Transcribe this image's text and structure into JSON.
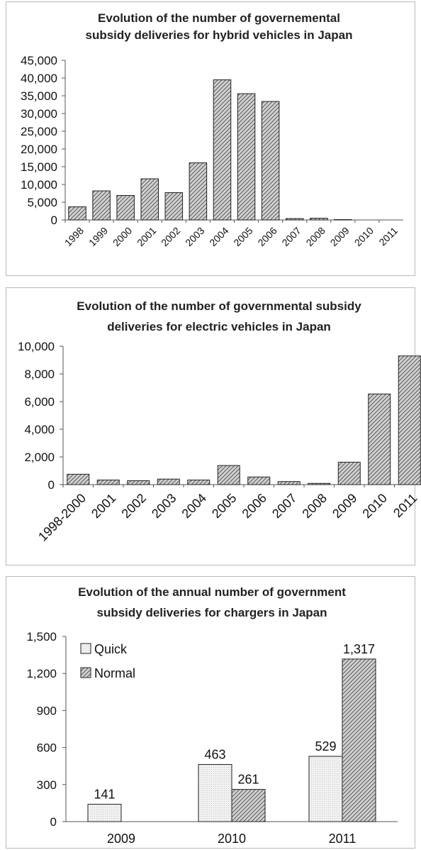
{
  "chart_data": [
    {
      "type": "bar",
      "title_lines": [
        "Evolution of the number of governemental",
        "subsidy deliveries for hybrid vehicles in Japan"
      ],
      "categories": [
        "1998",
        "1999",
        "2000",
        "2001",
        "2002",
        "2003",
        "2004",
        "2005",
        "2006",
        "2007",
        "2008",
        "2009",
        "2010",
        "2011"
      ],
      "values": [
        3700,
        8200,
        6900,
        11600,
        7700,
        16100,
        39500,
        35600,
        33400,
        400,
        500,
        100,
        0,
        0
      ],
      "yticks": [
        "0",
        "5,000",
        "10,000",
        "15,000",
        "20,000",
        "25,000",
        "30,000",
        "35,000",
        "40,000",
        "45,000"
      ],
      "ylim": [
        0,
        45000
      ],
      "xlabel": "",
      "ylabel": "",
      "grid": false,
      "bar_fill": "hatched-grey"
    },
    {
      "type": "bar",
      "title_lines": [
        "Evolution of the number of governmental subsidy",
        "deliveries for electric vehicles in Japan"
      ],
      "categories": [
        "1998-2000",
        "2001",
        "2002",
        "2003",
        "2004",
        "2005",
        "2006",
        "2007",
        "2008",
        "2009",
        "2010",
        "2011"
      ],
      "values": [
        750,
        330,
        280,
        400,
        330,
        1380,
        550,
        220,
        90,
        1620,
        6550,
        9300
      ],
      "yticks": [
        "0",
        "2,000",
        "4,000",
        "6,000",
        "8,000",
        "10,000"
      ],
      "ylim": [
        0,
        10000
      ],
      "xlabel": "",
      "ylabel": "",
      "grid": false,
      "bar_fill": "hatched-grey"
    },
    {
      "type": "bar",
      "title_lines": [
        "Evolution of the annual number of government",
        "subsidy deliveries for chargers in Japan"
      ],
      "categories": [
        "2009",
        "2010",
        "2011"
      ],
      "series": [
        {
          "name": "Quick",
          "values": [
            141,
            463,
            529
          ],
          "labels": [
            "141",
            "463",
            "529"
          ]
        },
        {
          "name": "Normal",
          "values": [
            0,
            261,
            1317
          ],
          "labels": [
            "",
            "261",
            "1,317"
          ]
        }
      ],
      "yticks": [
        "0",
        "300",
        "600",
        "900",
        "1,200",
        "1,500"
      ],
      "ylim": [
        0,
        1500
      ],
      "legend": "top-left",
      "xlabel": "",
      "ylabel": "",
      "grid": false
    }
  ]
}
